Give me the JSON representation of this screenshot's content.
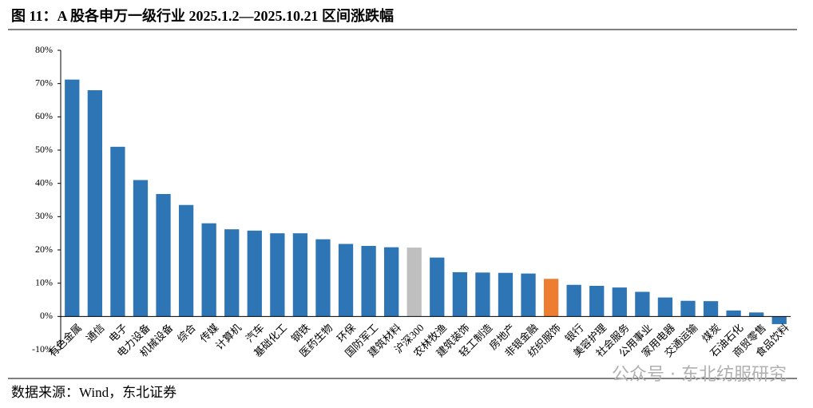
{
  "chart_data": {
    "type": "bar",
    "title": "图 11：A 股各申万一级行业 2025.1.2—2025.10.21 区间涨跌幅",
    "source": "数据来源：Wind，东北证券",
    "watermark": "公众号 · 东北纺服研究",
    "categories": [
      "有色金属",
      "通信",
      "电子",
      "电力设备",
      "机械设备",
      "综合",
      "传媒",
      "计算机",
      "汽车",
      "基础化工",
      "钢铁",
      "医药生物",
      "环保",
      "国防军工",
      "建筑材料",
      "沪深300",
      "农林牧渔",
      "建筑装饰",
      "轻工制造",
      "房地产",
      "非银金融",
      "纺织服饰",
      "银行",
      "美容护理",
      "社会服务",
      "公用事业",
      "家用电器",
      "交通运输",
      "煤炭",
      "石油石化",
      "商贸零售",
      "食品饮料"
    ],
    "values": [
      71.2,
      68.0,
      51.0,
      41.0,
      36.8,
      33.5,
      28.0,
      26.2,
      25.8,
      25.0,
      25.0,
      23.2,
      21.8,
      21.2,
      20.8,
      20.7,
      17.7,
      13.3,
      13.2,
      13.1,
      12.9,
      11.3,
      9.5,
      9.2,
      8.7,
      7.4,
      5.7,
      4.7,
      4.6,
      1.8,
      1.2,
      -2.3
    ],
    "colors": [
      "#2e75b6",
      "#2e75b6",
      "#2e75b6",
      "#2e75b6",
      "#2e75b6",
      "#2e75b6",
      "#2e75b6",
      "#2e75b6",
      "#2e75b6",
      "#2e75b6",
      "#2e75b6",
      "#2e75b6",
      "#2e75b6",
      "#2e75b6",
      "#2e75b6",
      "#bfbfbf",
      "#2e75b6",
      "#2e75b6",
      "#2e75b6",
      "#2e75b6",
      "#2e75b6",
      "#ed7d31",
      "#2e75b6",
      "#2e75b6",
      "#2e75b6",
      "#2e75b6",
      "#2e75b6",
      "#2e75b6",
      "#2e75b6",
      "#2e75b6",
      "#2e75b6",
      "#2e75b6"
    ],
    "ylim": [
      -10,
      80
    ],
    "yticks": [
      {
        "value": -10,
        "label": "-10%"
      },
      {
        "value": 0,
        "label": "0%"
      },
      {
        "value": 10,
        "label": "10%"
      },
      {
        "value": 20,
        "label": "20%"
      },
      {
        "value": 30,
        "label": "30%"
      },
      {
        "value": 40,
        "label": "40%"
      },
      {
        "value": 50,
        "label": "50%"
      },
      {
        "value": 60,
        "label": "60%"
      },
      {
        "value": 70,
        "label": "70%"
      },
      {
        "value": 80,
        "label": "80%"
      }
    ],
    "grid": false
  }
}
